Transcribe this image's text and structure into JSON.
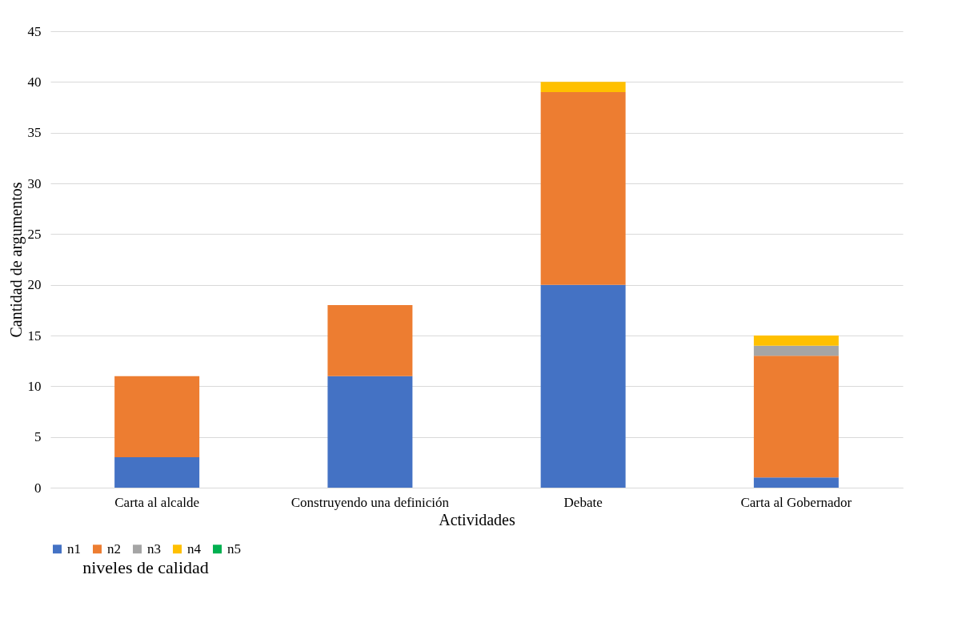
{
  "chart_data": {
    "type": "bar",
    "stacked": true,
    "xlabel": "Actividades",
    "ylabel": "Cantidad de argumentos",
    "legend_title": "niveles de calidad",
    "categories": [
      "Carta al alcalde",
      "Construyendo una definición",
      "Debate",
      "Carta al Gobernador"
    ],
    "series": [
      {
        "name": "n1",
        "color": "#4472c4",
        "values": [
          3,
          11,
          20,
          1
        ]
      },
      {
        "name": "n2",
        "color": "#ed7d31",
        "values": [
          8,
          7,
          19,
          12
        ]
      },
      {
        "name": "n3",
        "color": "#a5a5a5",
        "values": [
          0,
          0,
          0,
          1
        ]
      },
      {
        "name": "n4",
        "color": "#ffc000",
        "values": [
          0,
          0,
          1,
          1
        ]
      },
      {
        "name": "n5",
        "color": "#00b050",
        "values": [
          0,
          0,
          0,
          0
        ]
      }
    ],
    "ylim": [
      0,
      45
    ],
    "yticks": [
      0,
      5,
      10,
      15,
      20,
      25,
      30,
      35,
      40,
      45
    ],
    "grid": "y",
    "legend": "bottom"
  }
}
